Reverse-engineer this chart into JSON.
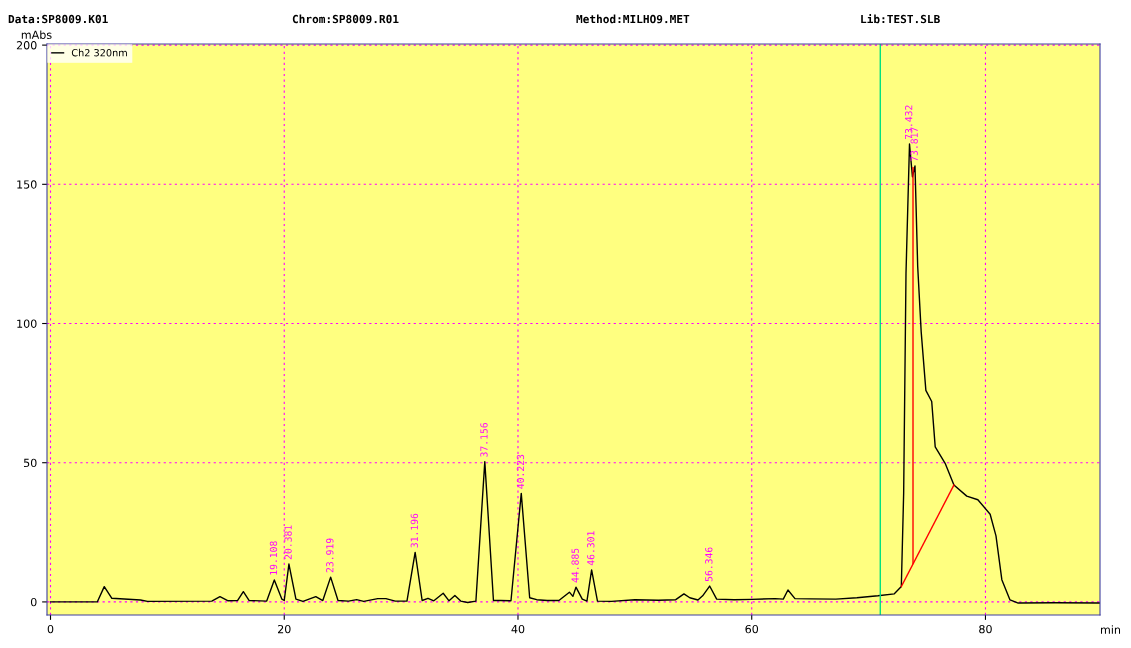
{
  "chart_data": {
    "type": "line",
    "xlabel": "min",
    "ylabel": "mAbs",
    "annotations": [
      "Data:SP8009.K01",
      "Chrom:SP8009.R01",
      "Method:MILHO9.MET",
      "Lib:TEST.SLB",
      {
        "text": "19.108",
        "x": 19.15,
        "y": 7.9
      },
      {
        "text": "20.381",
        "x": 20.4,
        "y": 13.6
      },
      {
        "text": "23.919",
        "x": 23.97,
        "y": 8.9
      },
      {
        "text": "31.196",
        "x": 31.2,
        "y": 17.8
      },
      {
        "text": "37.156",
        "x": 37.16,
        "y": 50.4
      },
      {
        "text": "40.223",
        "x": 40.28,
        "y": 39
      },
      {
        "text": "44.885",
        "x": 44.96,
        "y": 5.3
      },
      {
        "text": "46.301",
        "x": 46.3,
        "y": 11.5
      },
      {
        "text": "56.346",
        "x": 56.4,
        "y": 5.7
      },
      {
        "text": "73.432",
        "x": 73.5,
        "y": 164.5
      },
      {
        "text": "73.817",
        "x": 73.97,
        "y": 156.6
      }
    ],
    "series": [
      {
        "name": "Ch2 320nm",
        "color": "#000000",
        "x": [
          0,
          4.0,
          4.6,
          5.25,
          7.7,
          8.3,
          13.8,
          14.5,
          15.2,
          16.0,
          16.5,
          17.0,
          18.5,
          19.15,
          19.8,
          20.0,
          20.4,
          21.0,
          21.6,
          22.7,
          23.3,
          23.97,
          24.6,
          25.5,
          26.2,
          26.8,
          28.0,
          28.7,
          29.5,
          30.5,
          31.2,
          31.8,
          32.3,
          32.8,
          33.6,
          34.1,
          34.6,
          35.1,
          35.7,
          36.4,
          37.16,
          37.9,
          38.5,
          39.4,
          40.28,
          41.0,
          41.6,
          42.5,
          43.5,
          44.4,
          44.7,
          44.96,
          45.5,
          45.9,
          46.3,
          46.8,
          48,
          50,
          52,
          53.5,
          54.2,
          54.7,
          55.4,
          55.8,
          56.4,
          57,
          58.5,
          60,
          62,
          62.7,
          63.1,
          63.7,
          65,
          67.2,
          69,
          70.8,
          72.2,
          72.8,
          73.0,
          73.2,
          73.5,
          73.75,
          73.97,
          74.2,
          74.5,
          74.9,
          75.4,
          75.7,
          76.55,
          77.3,
          78.4,
          79.35,
          80.4,
          80.9,
          81.4,
          82.1,
          82.8,
          86,
          89.8
        ],
        "values": [
          0,
          0,
          5.5,
          1.3,
          0.7,
          0.2,
          0.3,
          1.9,
          0.4,
          0.5,
          3.7,
          0.5,
          0.3,
          7.9,
          1.0,
          0.5,
          13.6,
          1.0,
          0.2,
          1.9,
          0.5,
          8.9,
          0.5,
          0.3,
          0.8,
          0.2,
          1.2,
          1.2,
          0.3,
          0.3,
          17.8,
          0.5,
          1.3,
          0.4,
          3.1,
          0.4,
          2.3,
          0.3,
          -0.2,
          0.3,
          50.4,
          0.5,
          0.5,
          0.4,
          39,
          1.5,
          0.8,
          0.5,
          0.5,
          3.5,
          2.0,
          5.3,
          1.0,
          0.3,
          11.5,
          0.3,
          0.2,
          0.8,
          0.6,
          0.8,
          2.9,
          1.5,
          0.7,
          2.2,
          5.7,
          1.0,
          0.8,
          0.9,
          1.2,
          1.0,
          4.3,
          1.2,
          1.1,
          1.0,
          1.5,
          2.2,
          2.9,
          5.5,
          39,
          118,
          164.5,
          152.7,
          156.6,
          120.6,
          97,
          76,
          72,
          55.7,
          49.8,
          42,
          38,
          36.7,
          31.5,
          23.7,
          8,
          0.7,
          -0.4,
          -0.3,
          -0.4
        ]
      },
      {
        "color": "#ff0000",
        "x": [
          72.8,
          77.3
        ],
        "values": [
          5.5,
          42
        ]
      },
      {
        "color": "#ff0000",
        "x": [
          73.8,
          73.8
        ],
        "values": [
          13.8,
          156
        ]
      }
    ],
    "xlim": [
      -0.3,
      89.8
    ],
    "ylim": [
      -4.7,
      200.4
    ],
    "xticks": [
      0,
      20,
      40,
      60,
      80
    ],
    "yticks": [
      0,
      50,
      100,
      150,
      200
    ],
    "ref_lines": [
      {
        "axis": "x",
        "value": 71.0,
        "color": "#00e080"
      }
    ],
    "grid": true,
    "legend": "top left"
  }
}
